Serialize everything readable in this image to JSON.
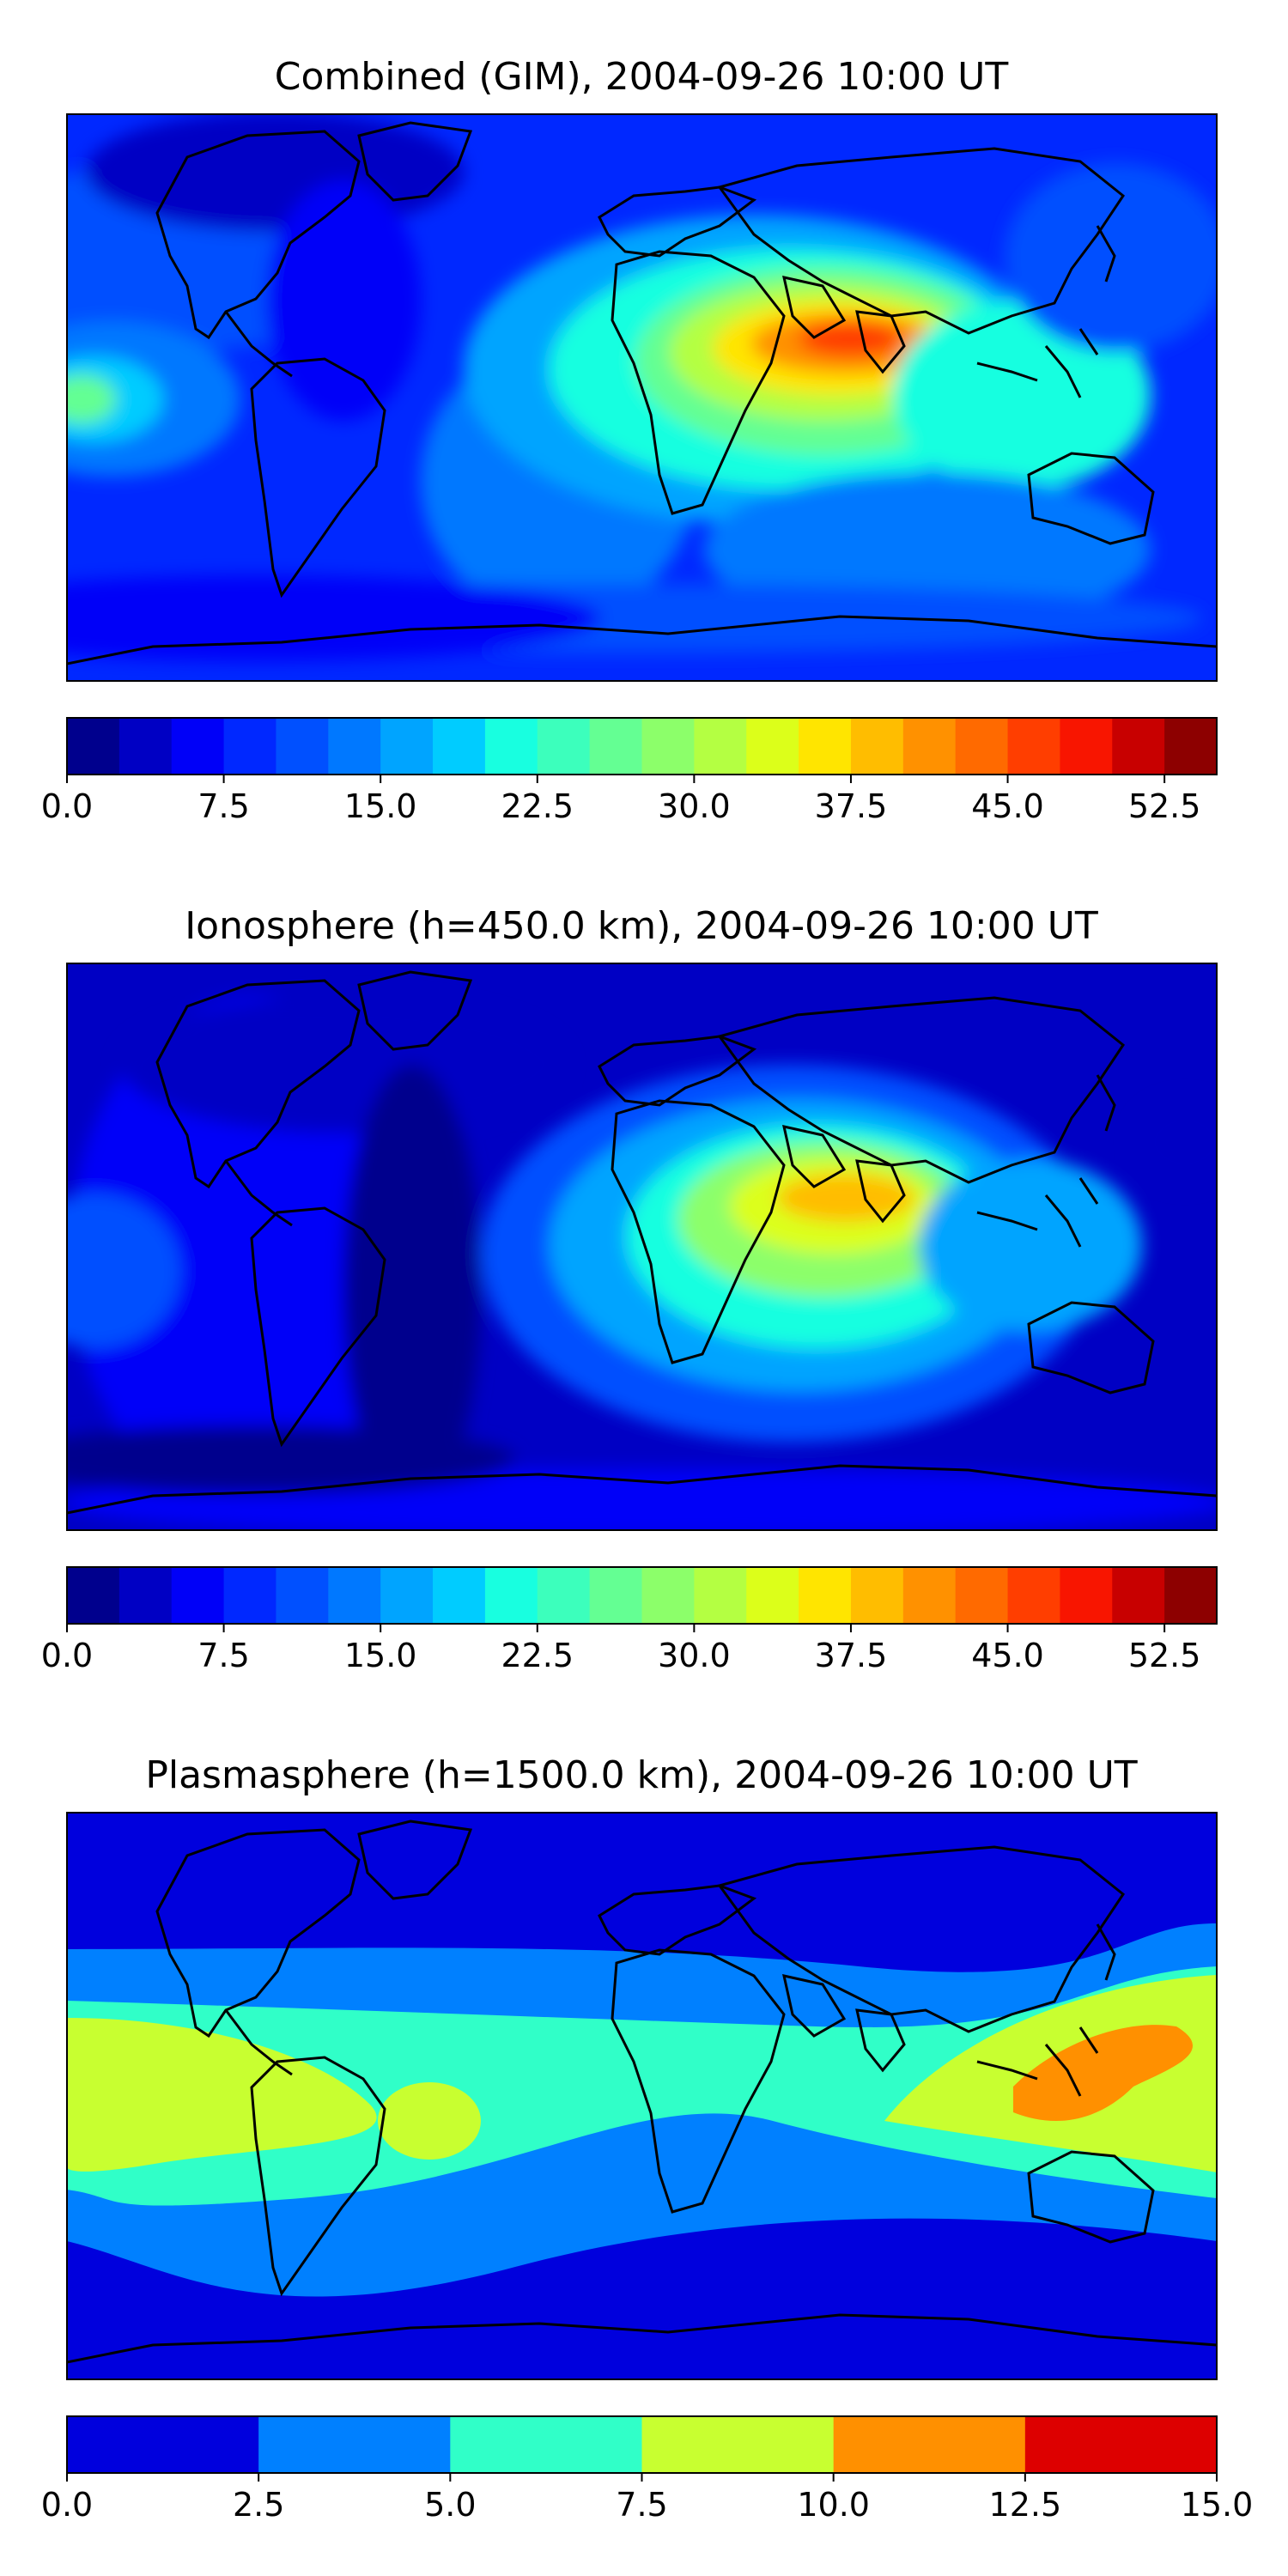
{
  "chart_data": [
    {
      "type": "heatmap",
      "title": "Combined (GIM), 2004-09-26 10:00 UT",
      "colorbar": {
        "levels": [
          0.0,
          2.5,
          5.0,
          7.5,
          10.0,
          12.5,
          15.0,
          17.5,
          20.0,
          22.5,
          25.0,
          27.5,
          30.0,
          32.5,
          35.0,
          37.5,
          40.0,
          42.5,
          45.0,
          47.5,
          50.0,
          52.5,
          55.0
        ],
        "ticks": [
          "0.0",
          "7.5",
          "15.0",
          "22.5",
          "30.0",
          "37.5",
          "45.0",
          "52.5"
        ],
        "range": [
          0,
          55
        ]
      },
      "features": {
        "max_region": "North Africa / Arabia / South Asia",
        "max_value": 45.0,
        "secondary_max_region": "Central Pacific",
        "secondary_value": 22.5,
        "min_region": "Polar regions / North America",
        "min_value": 2.5
      }
    },
    {
      "type": "heatmap",
      "title": "Ionosphere  (h=450.0 km), 2004-09-26 10:00 UT",
      "colorbar": {
        "levels": [
          0.0,
          2.5,
          5.0,
          7.5,
          10.0,
          12.5,
          15.0,
          17.5,
          20.0,
          22.5,
          25.0,
          27.5,
          30.0,
          32.5,
          35.0,
          37.5,
          40.0,
          42.5,
          45.0,
          47.5,
          50.0,
          52.5,
          55.0
        ],
        "ticks": [
          "0.0",
          "7.5",
          "15.0",
          "22.5",
          "30.0",
          "37.5",
          "45.0",
          "52.5"
        ],
        "range": [
          0,
          55
        ]
      },
      "features": {
        "max_region": "Arabia / North Africa",
        "max_value": 37.5,
        "min_region": "Americas / Pacific",
        "min_value": 0.0
      }
    },
    {
      "type": "heatmap",
      "title": "Plasmasphere (h=1500.0 km), 2004-09-26 10:00 UT",
      "colorbar": {
        "levels": [
          0.0,
          2.5,
          5.0,
          7.5,
          10.0,
          12.5,
          15.0
        ],
        "ticks": [
          "0.0",
          "2.5",
          "5.0",
          "7.5",
          "10.0",
          "12.5",
          "15.0"
        ],
        "range": [
          0,
          15
        ]
      },
      "features": {
        "max_region": "Western Pacific / Indonesia",
        "max_value": 12.5,
        "min_region": "Polar regions",
        "min_value": 0.0
      }
    }
  ],
  "colors": {
    "jet22": [
      "#00008d",
      "#0000c4",
      "#0000f8",
      "#0028ff",
      "#0050ff",
      "#0078ff",
      "#00a4ff",
      "#00ccff",
      "#18ffe0",
      "#3cffbc",
      "#64ff93",
      "#8cff6a",
      "#b4ff42",
      "#dcff1a",
      "#ffe500",
      "#ffbd00",
      "#ff9100",
      "#ff6a00",
      "#ff3e00",
      "#f81500",
      "#c80000",
      "#8d0000"
    ],
    "jet6": [
      "#0000dd",
      "#0080ff",
      "#30ffc8",
      "#c8ff30",
      "#ff9000",
      "#dd0000"
    ]
  }
}
